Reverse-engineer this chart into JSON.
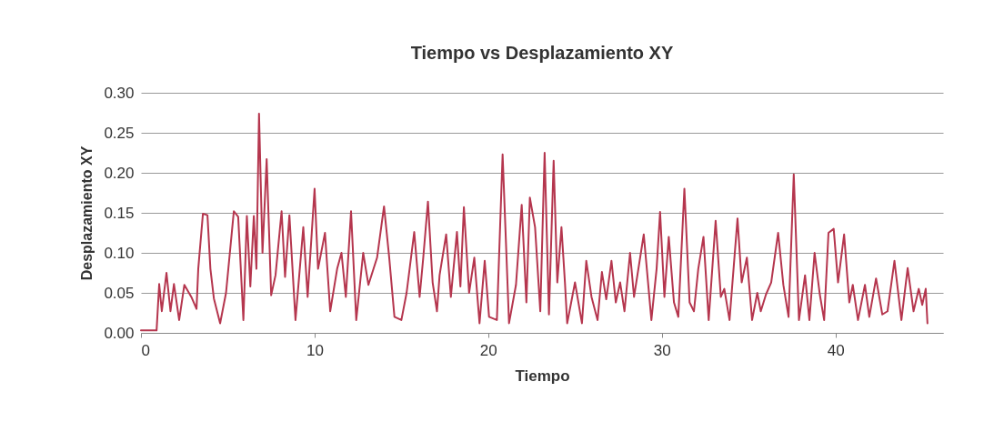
{
  "chart_data": {
    "type": "line",
    "title": "Tiempo vs Desplazamiento XY",
    "xlabel": "Tiempo",
    "ylabel": "Desplazamiento XY",
    "xlim": [
      0,
      46.2
    ],
    "ylim": [
      0,
      0.3
    ],
    "xticks": [
      0,
      10,
      20,
      30,
      40
    ],
    "yticks": [
      {
        "value": 0,
        "label": "0.00"
      },
      {
        "value": 0.05,
        "label": "0.05"
      },
      {
        "value": 0.1,
        "label": "0.10"
      },
      {
        "value": 0.15,
        "label": "0.15"
      },
      {
        "value": 0.2,
        "label": "0.20"
      },
      {
        "value": 0.25,
        "label": "0.25"
      },
      {
        "value": 0.3,
        "label": "0.30"
      }
    ],
    "grid": "y",
    "marker": "none",
    "line_style": "solid",
    "x": [
      0,
      0.9,
      1.05,
      1.2,
      1.47,
      1.7,
      1.9,
      2.2,
      2.5,
      2.9,
      3.2,
      3.3,
      3.57,
      3.83,
      4.0,
      4.2,
      4.56,
      4.9,
      5.35,
      5.6,
      5.9,
      6.1,
      6.3,
      6.5,
      6.65,
      6.8,
      7.0,
      7.24,
      7.5,
      7.75,
      8.1,
      8.3,
      8.55,
      8.9,
      9.35,
      9.6,
      10.0,
      10.2,
      10.6,
      10.9,
      11.3,
      11.55,
      11.8,
      12.1,
      12.4,
      12.8,
      13.1,
      13.6,
      14.0,
      14.3,
      14.6,
      15.0,
      15.3,
      15.74,
      16.05,
      16.26,
      16.53,
      16.8,
      17.05,
      17.2,
      17.58,
      17.85,
      18.2,
      18.4,
      18.6,
      18.9,
      19.2,
      19.5,
      19.8,
      20.05,
      20.5,
      20.83,
      21.2,
      21.6,
      21.93,
      22.2,
      22.4,
      22.7,
      23.0,
      23.25,
      23.5,
      23.77,
      23.98,
      24.22,
      24.42,
      24.55,
      25.0,
      25.4,
      25.65,
      25.95,
      26.3,
      26.55,
      26.8,
      27.1,
      27.35,
      27.6,
      27.85,
      28.17,
      28.4,
      28.96,
      29.4,
      29.7,
      29.9,
      30.15,
      30.4,
      30.7,
      30.95,
      31.3,
      31.6,
      31.85,
      32.1,
      32.4,
      32.7,
      33.1,
      33.4,
      33.6,
      33.9,
      34.36,
      34.6,
      34.9,
      35.2,
      35.5,
      35.7,
      36.0,
      36.3,
      36.7,
      37.0,
      37.3,
      37.6,
      37.9,
      38.25,
      38.5,
      38.8,
      39.1,
      39.35,
      39.6,
      39.9,
      40.15,
      40.5,
      40.8,
      41.0,
      41.3,
      41.7,
      41.95,
      42.34,
      42.7,
      43.0,
      43.4,
      43.8,
      44.16,
      44.5,
      44.8,
      45.0,
      45.2,
      45.3
    ],
    "series": [
      {
        "color": "#b5364e",
        "values": [
          0.003,
          0.003,
          0.061,
          0.027,
          0.075,
          0.027,
          0.061,
          0.016,
          0.06,
          0.045,
          0.03,
          0.08,
          0.149,
          0.147,
          0.08,
          0.043,
          0.012,
          0.05,
          0.152,
          0.145,
          0.016,
          0.146,
          0.058,
          0.146,
          0.08,
          0.274,
          0.1,
          0.217,
          0.047,
          0.072,
          0.152,
          0.07,
          0.147,
          0.016,
          0.132,
          0.045,
          0.18,
          0.08,
          0.125,
          0.027,
          0.08,
          0.1,
          0.045,
          0.152,
          0.016,
          0.1,
          0.06,
          0.094,
          0.158,
          0.094,
          0.02,
          0.016,
          0.05,
          0.126,
          0.045,
          0.094,
          0.164,
          0.063,
          0.027,
          0.072,
          0.123,
          0.045,
          0.126,
          0.058,
          0.157,
          0.05,
          0.094,
          0.012,
          0.09,
          0.02,
          0.016,
          0.223,
          0.012,
          0.06,
          0.16,
          0.038,
          0.169,
          0.132,
          0.027,
          0.225,
          0.023,
          0.215,
          0.063,
          0.132,
          0.063,
          0.012,
          0.063,
          0.012,
          0.09,
          0.045,
          0.016,
          0.076,
          0.042,
          0.09,
          0.038,
          0.063,
          0.027,
          0.1,
          0.045,
          0.123,
          0.016,
          0.08,
          0.151,
          0.045,
          0.12,
          0.038,
          0.02,
          0.18,
          0.038,
          0.027,
          0.08,
          0.12,
          0.016,
          0.14,
          0.045,
          0.055,
          0.016,
          0.143,
          0.063,
          0.094,
          0.016,
          0.05,
          0.027,
          0.048,
          0.063,
          0.125,
          0.06,
          0.02,
          0.198,
          0.016,
          0.072,
          0.016,
          0.1,
          0.048,
          0.016,
          0.125,
          0.13,
          0.063,
          0.123,
          0.038,
          0.06,
          0.016,
          0.06,
          0.02,
          0.068,
          0.023,
          0.027,
          0.09,
          0.016,
          0.081,
          0.027,
          0.055,
          0.035,
          0.055,
          0.012
        ]
      }
    ]
  }
}
